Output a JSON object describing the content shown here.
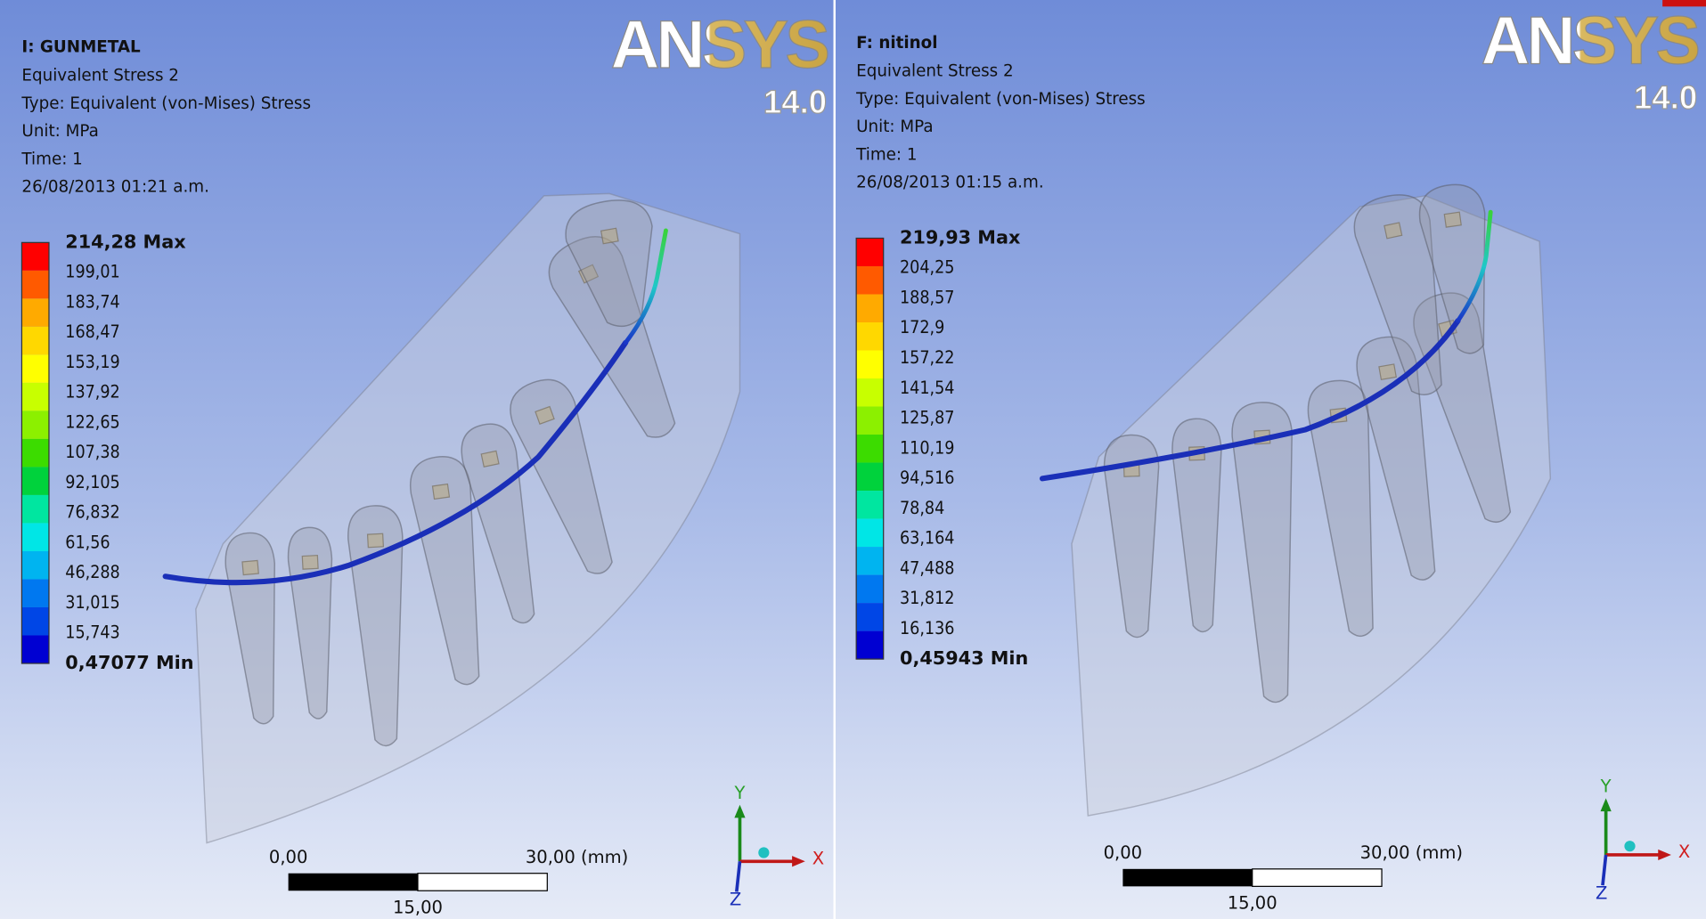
{
  "panels": [
    {
      "title": "I: GUNMETAL",
      "lines": [
        "Equivalent Stress 2",
        "Type: Equivalent (von-Mises) Stress",
        "Unit: MPa",
        "Time: 1",
        "26/08/2013 01:21 a.m."
      ],
      "legend": [
        "214,28 Max",
        "199,01",
        "183,74",
        "168,47",
        "153,19",
        "137,92",
        "122,65",
        "107,38",
        "92,105",
        "76,832",
        "61,56",
        "46,288",
        "31,015",
        "15,743",
        "0,47077 Min"
      ],
      "logo": {
        "brand": "ANSYS",
        "version": "14.0"
      },
      "scale": {
        "start": "0,00",
        "end": "30,00 (mm)",
        "mid": "15,00"
      },
      "axes": {
        "y": "Y",
        "x": "X",
        "z": "Z"
      }
    },
    {
      "title": "F: nitinol",
      "lines": [
        "Equivalent Stress 2",
        "Type: Equivalent (von-Mises) Stress",
        "Unit: MPa",
        "Time: 1",
        "26/08/2013 01:15 a.m."
      ],
      "legend": [
        "219,93 Max",
        "204,25",
        "188,57",
        "172,9",
        "157,22",
        "141,54",
        "125,87",
        "110,19",
        "94,516",
        "78,84",
        "63,164",
        "47,488",
        "31,812",
        "16,136",
        "0,45943 Min"
      ],
      "logo": {
        "brand": "ANSYS",
        "version": "14.0"
      },
      "scale": {
        "start": "0,00",
        "end": "30,00 (mm)",
        "mid": "15,00"
      },
      "axes": {
        "y": "Y",
        "x": "X",
        "z": "Z"
      }
    }
  ]
}
